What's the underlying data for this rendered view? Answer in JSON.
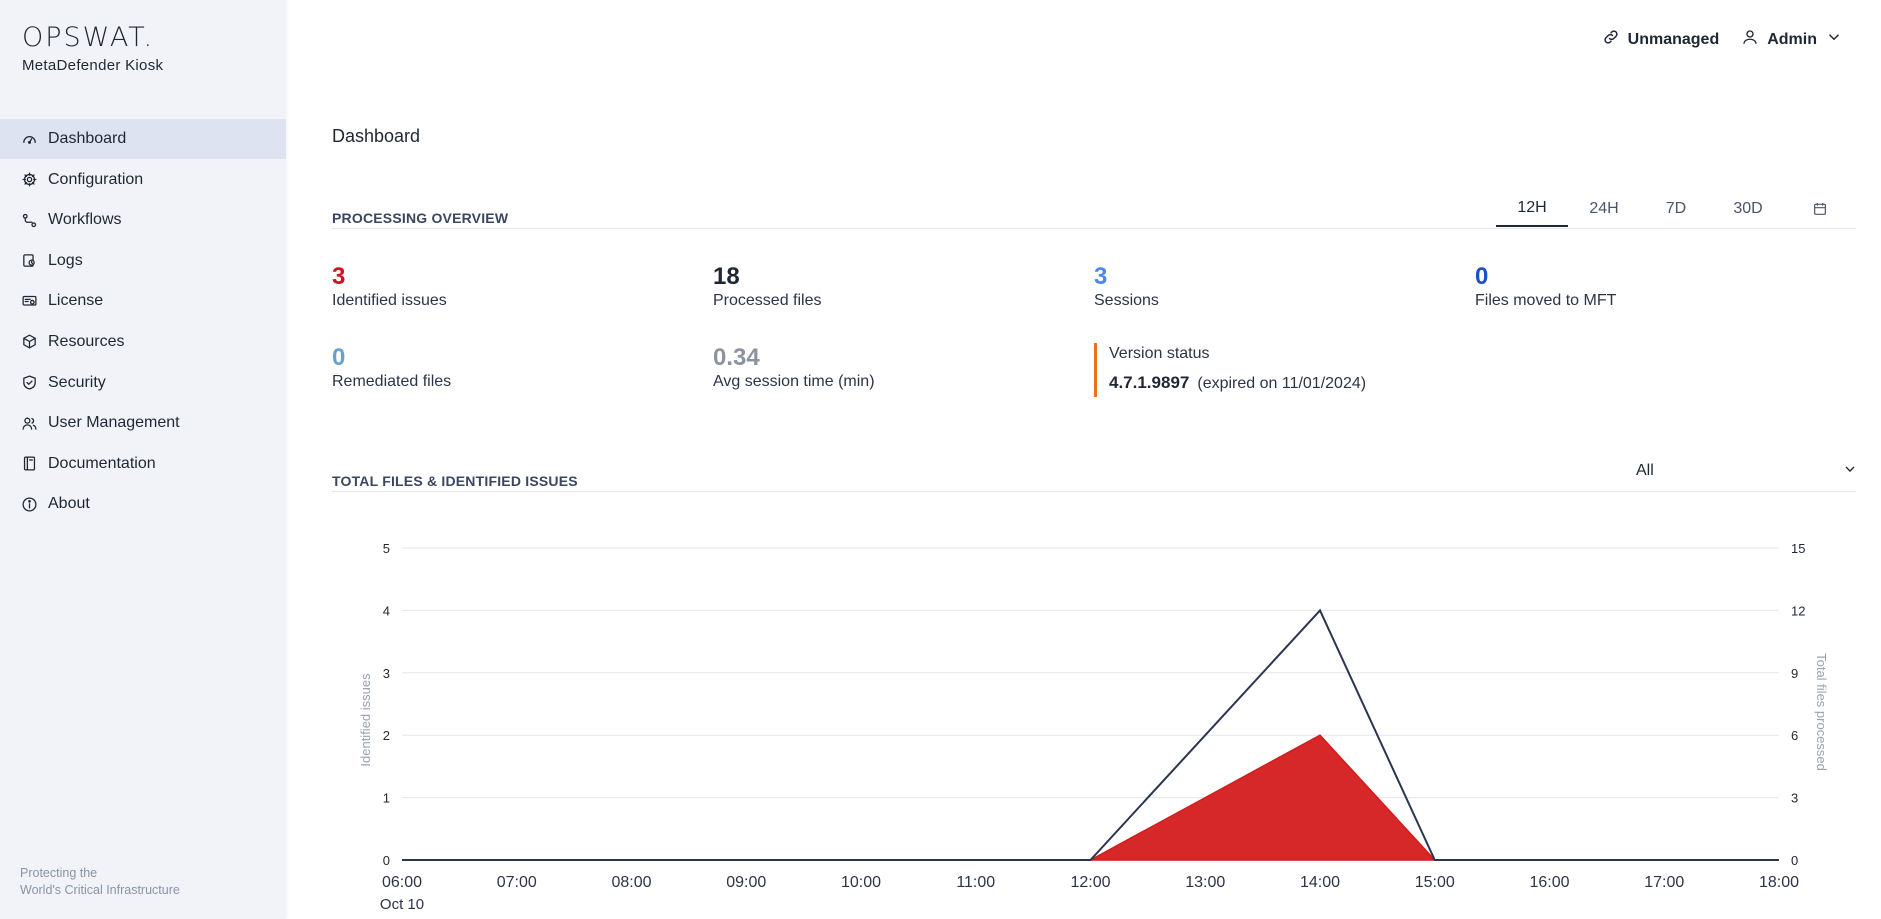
{
  "brand": {
    "logo": "OPSWAT.",
    "product": "MetaDefender Kiosk"
  },
  "sidebar": {
    "items": [
      {
        "label": "Dashboard",
        "icon": "dashboard-icon",
        "active": true
      },
      {
        "label": "Configuration",
        "icon": "gear-icon"
      },
      {
        "label": "Workflows",
        "icon": "workflow-icon"
      },
      {
        "label": "Logs",
        "icon": "logs-icon"
      },
      {
        "label": "License",
        "icon": "license-icon"
      },
      {
        "label": "Resources",
        "icon": "cube-icon"
      },
      {
        "label": "Security",
        "icon": "shield-icon"
      },
      {
        "label": "User Management",
        "icon": "users-icon"
      },
      {
        "label": "Documentation",
        "icon": "book-icon"
      },
      {
        "label": "About",
        "icon": "info-icon"
      }
    ],
    "tagline_line1": "Protecting the",
    "tagline_line2": "World's Critical Infrastructure"
  },
  "topbar": {
    "unmanaged": "Unmanaged",
    "user": "Admin"
  },
  "page": {
    "title": "Dashboard"
  },
  "overview": {
    "title": "PROCESSING OVERVIEW",
    "tabs": [
      "12H",
      "24H",
      "7D",
      "30D"
    ],
    "active_tab": "12H",
    "metrics": {
      "identified_issues": {
        "value": "3",
        "label": "Identified issues",
        "color": "#d0101b"
      },
      "processed_files": {
        "value": "18",
        "label": "Processed files",
        "color": "#1f2733"
      },
      "sessions": {
        "value": "3",
        "label": "Sessions",
        "color": "#4d86f0"
      },
      "files_moved": {
        "value": "0",
        "label": "Files moved to MFT",
        "color": "#1d4ec7"
      },
      "remediated": {
        "value": "0",
        "label": "Remediated files",
        "color": "#6aa0c9"
      },
      "avg_session": {
        "value": "0.34",
        "label": "Avg session time (min)",
        "color": "#8b93a1"
      }
    },
    "version": {
      "title": "Version status",
      "number": "4.7.1.9897",
      "note": "(expired on 11/01/2024)",
      "accent": "#e8731b"
    }
  },
  "issues_section": {
    "title": "TOTAL FILES & IDENTIFIED ISSUES",
    "filter": "All"
  },
  "chart_data": {
    "type": "line",
    "x": [
      "06:00",
      "07:00",
      "08:00",
      "09:00",
      "10:00",
      "11:00",
      "12:00",
      "13:00",
      "14:00",
      "15:00",
      "16:00",
      "17:00",
      "18:00"
    ],
    "x_sub_first": "Oct 10",
    "ylabel_left": "Identified issues",
    "ylabel_right": "Total files processed",
    "ylim_left": [
      0,
      5
    ],
    "ylim_right": [
      0,
      15
    ],
    "yticks_left": [
      0,
      1,
      2,
      3,
      4,
      5
    ],
    "yticks_right": [
      0,
      3,
      6,
      9,
      12,
      15
    ],
    "grid": true,
    "series": [
      {
        "axis": "left",
        "style": "area",
        "color": "#d41c1c",
        "values": [
          0,
          0,
          0,
          0,
          0,
          0,
          0,
          1,
          2,
          0,
          0,
          0,
          0
        ]
      },
      {
        "axis": "right",
        "style": "line",
        "color": "#2b3550",
        "values": [
          0,
          0,
          0,
          0,
          0,
          0,
          0,
          6,
          12,
          0,
          0,
          0,
          0
        ]
      }
    ]
  }
}
